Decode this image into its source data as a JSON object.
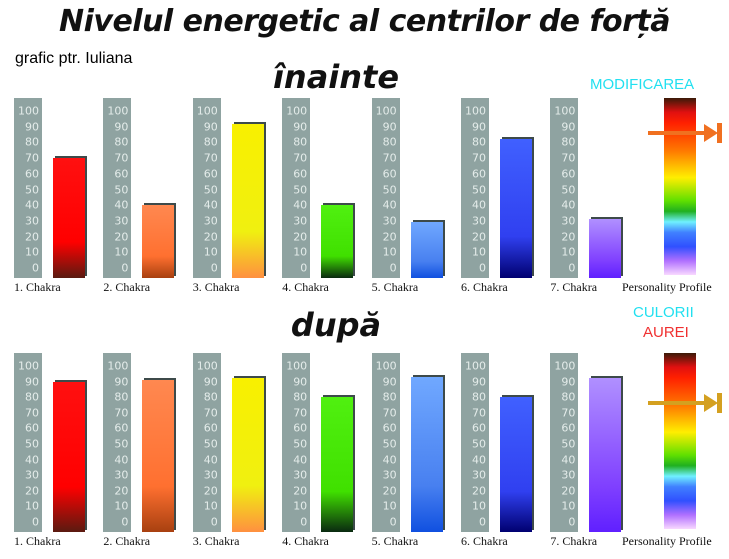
{
  "title": "Nivelul energetic al centrilor de forță",
  "subtitle": "grafic ptr. Iuliana",
  "side_text": {
    "line1": "MODIFICAREA",
    "line2": "CULORII",
    "line3": "AUREI"
  },
  "colors": {
    "cyan": "#22e0f0",
    "red": "#f03030",
    "arrow_before": "#f07020",
    "arrow_after": "#d4a020"
  },
  "chart_data": [
    {
      "type": "bar",
      "title": "înainte",
      "categories": [
        "1. Chakra",
        "2. Chakra",
        "3. Chakra",
        "4. Chakra",
        "5. Chakra",
        "6. Chakra",
        "7. Chakra"
      ],
      "values": [
        70,
        40,
        92,
        40,
        29,
        82,
        31
      ],
      "ylim": [
        0,
        100
      ],
      "yticks": [
        100,
        90,
        80,
        70,
        60,
        50,
        40,
        30,
        20,
        10,
        0
      ],
      "profile_label": "Personality Profile",
      "profile_marker": 86
    },
    {
      "type": "bar",
      "title": "după",
      "categories": [
        "1. Chakra",
        "2. Chakra",
        "3. Chakra",
        "4. Chakra",
        "5. Chakra",
        "6. Chakra",
        "7. Chakra"
      ],
      "values": [
        90,
        91,
        92,
        80,
        93,
        80,
        92
      ],
      "ylim": [
        0,
        100
      ],
      "yticks": [
        100,
        90,
        80,
        70,
        60,
        50,
        40,
        30,
        20,
        10,
        0
      ],
      "profile_label": "Personality Profile",
      "profile_marker": 76
    }
  ]
}
